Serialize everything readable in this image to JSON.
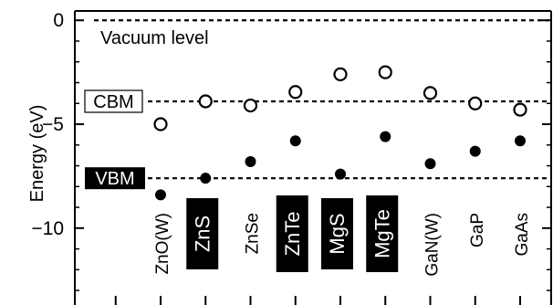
{
  "chart_data": {
    "type": "scatter",
    "title": "",
    "xlabel": "",
    "ylabel": "Energy (eV)",
    "ylim": [
      -13.7,
      0.45
    ],
    "y_ticks": [
      0,
      -5,
      -10
    ],
    "y_tick_labels": [
      "0",
      "−5",
      "−10"
    ],
    "categories": [
      "ZnO(W)",
      "ZnS",
      "ZnSe",
      "ZnTe",
      "MgS",
      "MgTe",
      "GaN(W)",
      "GaP",
      "GaAs"
    ],
    "highlighted_categories": [
      "ZnS",
      "ZnTe",
      "MgS",
      "MgTe"
    ],
    "series": [
      {
        "name": "CBM",
        "marker": "open-circle",
        "values": [
          -5.0,
          -3.9,
          -4.1,
          -3.45,
          -2.6,
          -2.5,
          -3.5,
          -4.0,
          -4.3
        ]
      },
      {
        "name": "VBM",
        "marker": "filled-circle",
        "values": [
          -8.4,
          -7.6,
          -6.8,
          -5.8,
          -7.4,
          -5.6,
          -6.9,
          -6.3,
          -5.8
        ]
      }
    ],
    "reference_lines": [
      {
        "label": "Vacuum level",
        "y": 0.0
      },
      {
        "label": "CBM",
        "y": -3.9
      },
      {
        "label": "VBM",
        "y": -7.6
      }
    ],
    "grid": false,
    "legend": "none"
  }
}
